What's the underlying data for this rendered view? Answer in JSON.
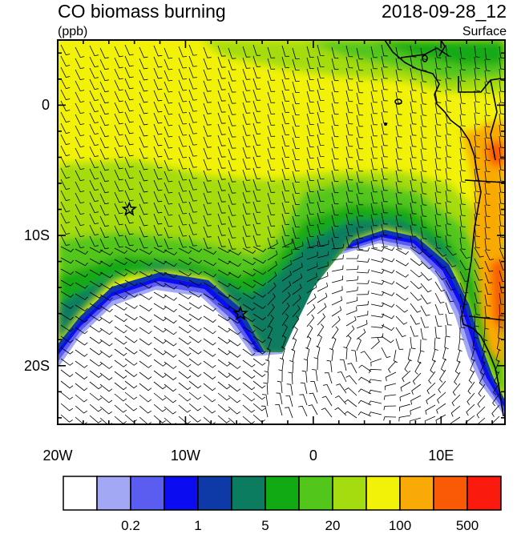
{
  "header": {
    "title": "CO biomass burning",
    "units": "(ppb)",
    "datetime": "2018-09-28_12",
    "level": "Surface"
  },
  "map": {
    "lon_range": [
      -20,
      15
    ],
    "lat_range": [
      -24.5,
      5
    ],
    "x_ticks": [
      {
        "lon": -20,
        "label": "20W"
      },
      {
        "lon": -10,
        "label": "10W"
      },
      {
        "lon": 0,
        "label": "0"
      },
      {
        "lon": 10,
        "label": "10E"
      }
    ],
    "y_ticks": [
      {
        "lat": 0,
        "label": "0"
      },
      {
        "lat": -10,
        "label": "10S"
      },
      {
        "lat": -20,
        "label": "20S"
      }
    ],
    "markers": [
      {
        "name": "star",
        "lon": -14.4,
        "lat": -8.0
      },
      {
        "name": "star",
        "lon": -5.7,
        "lat": -16.0
      }
    ],
    "vectors": "wind barbs"
  },
  "colorbar": {
    "colors": [
      "#ffffff",
      "#a3a8f4",
      "#5b5cf0",
      "#0c0cf0",
      "#0e3aa8",
      "#0b7c60",
      "#12aa12",
      "#53c61c",
      "#a4dc10",
      "#f2f208",
      "#f9aa06",
      "#fa5a06",
      "#fa1a0e"
    ],
    "labels": [
      {
        "after_box": 2,
        "text": "0.2"
      },
      {
        "after_box": 4,
        "text": "1"
      },
      {
        "after_box": 6,
        "text": "5"
      },
      {
        "after_box": 8,
        "text": "20"
      },
      {
        "after_box": 10,
        "text": "100"
      },
      {
        "after_box": 12,
        "text": "500"
      }
    ]
  }
}
